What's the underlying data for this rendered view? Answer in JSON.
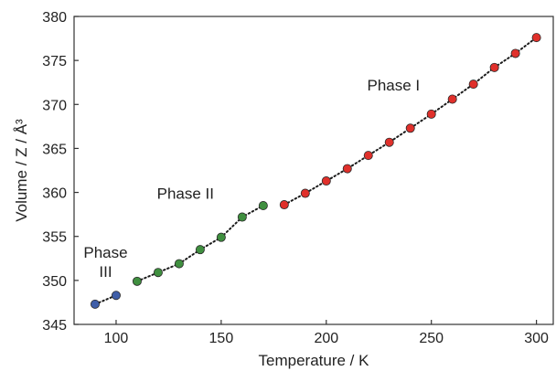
{
  "chart_data": {
    "type": "scatter",
    "xlabel": "Temperature / K",
    "ylabel": "Volume / Z / Å³",
    "xlim": [
      80,
      308
    ],
    "ylim": [
      345,
      380
    ],
    "xticks": [
      100,
      150,
      200,
      250,
      300
    ],
    "yticks": [
      345,
      350,
      355,
      360,
      365,
      370,
      375,
      380
    ],
    "grid": false,
    "legend": "none",
    "series": [
      {
        "name": "Phase III",
        "color": "#3f5ea8",
        "x": [
          90,
          100
        ],
        "y": [
          347.3,
          348.3
        ]
      },
      {
        "name": "Phase II",
        "color": "#3f8f3f",
        "x": [
          110,
          120,
          130,
          140,
          150,
          160,
          170
        ],
        "y": [
          349.9,
          350.9,
          351.9,
          353.5,
          354.9,
          357.2,
          358.5
        ]
      },
      {
        "name": "Phase I",
        "color": "#e0302b",
        "x": [
          180,
          190,
          200,
          210,
          220,
          230,
          240,
          250,
          260,
          270,
          280,
          290,
          300
        ],
        "y": [
          358.6,
          359.9,
          361.3,
          362.7,
          364.2,
          365.7,
          367.3,
          368.9,
          370.6,
          372.3,
          374.2,
          375.8,
          377.6
        ]
      }
    ],
    "annotations": [
      {
        "lines": [
          "Phase I"
        ],
        "x": 232,
        "y": 371.6
      },
      {
        "lines": [
          "Phase II"
        ],
        "x": 133,
        "y": 359.3
      },
      {
        "lines": [
          "Phase",
          "III"
        ],
        "x": 95,
        "y": 352.6
      }
    ]
  }
}
